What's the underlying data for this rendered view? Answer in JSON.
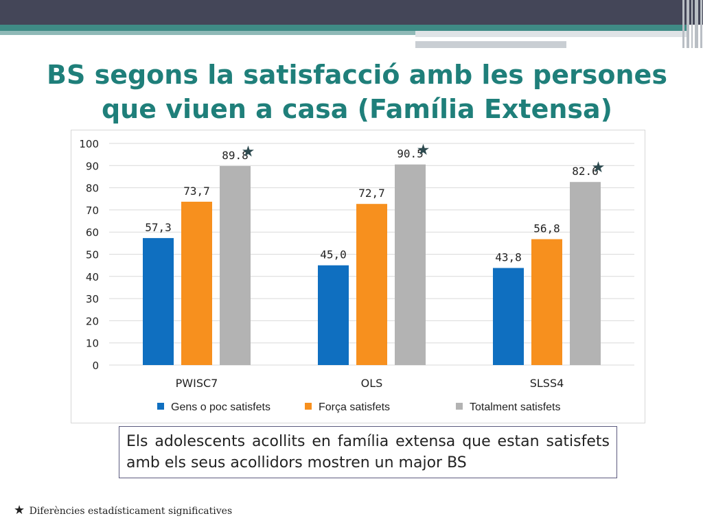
{
  "slide": {
    "title_line1": "BS segons la satisfacció amb les persones",
    "title_line2": "que viuen a casa (Família Extensa)",
    "note_text": "Els adolescents acollits en família extensa que estan satisfets amb els seus acollidors mostren un major BS",
    "footnote_star": "★",
    "footnote_text": "Diferències estadísticament significatives"
  },
  "colors": {
    "title": "#1f7f7a",
    "series": [
      "#0f6fc0",
      "#f7901e",
      "#b3b3b3"
    ],
    "star": "#2d4a4f"
  },
  "chart_data": {
    "type": "bar",
    "categories": [
      "PWISC7",
      "OLS",
      "SLSS4"
    ],
    "series": [
      {
        "name": "Gens o poc satisfets",
        "values": [
          57.3,
          45.0,
          43.8
        ],
        "labels": [
          "57,3",
          "45,0",
          "43,8"
        ]
      },
      {
        "name": "Força satisfets",
        "values": [
          73.7,
          72.7,
          56.8
        ],
        "labels": [
          "73,7",
          "72,7",
          "56,8"
        ]
      },
      {
        "name": "Totalment satisfets",
        "values": [
          89.8,
          90.5,
          82.6
        ],
        "labels": [
          "89.8",
          "90.5",
          "82.6"
        ]
      }
    ],
    "significant": [
      true,
      true,
      true
    ],
    "yticks": [
      0,
      10,
      20,
      30,
      40,
      50,
      60,
      70,
      80,
      90,
      100
    ],
    "ylim": [
      0,
      100
    ],
    "grid": true,
    "legend": "bottom"
  }
}
